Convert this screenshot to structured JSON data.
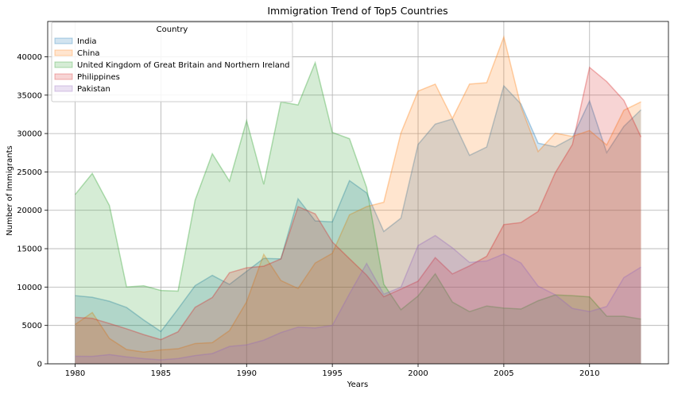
{
  "chart_data": {
    "type": "area",
    "title": "Immigration Trend of Top5 Countries",
    "xlabel": "Years",
    "ylabel": "Number of Immigrants",
    "xlim": [
      1978.4,
      2014.6
    ],
    "ylim": [
      0,
      44600
    ],
    "x_ticks": [
      1980,
      1985,
      1990,
      1995,
      2000,
      2005,
      2010
    ],
    "y_ticks": [
      0,
      5000,
      10000,
      15000,
      20000,
      25000,
      30000,
      35000,
      40000
    ],
    "grid": true,
    "stacked": false,
    "legend": {
      "title": "Country",
      "placement": "top-left"
    },
    "x": [
      1980,
      1981,
      1982,
      1983,
      1984,
      1985,
      1986,
      1987,
      1988,
      1989,
      1990,
      1991,
      1992,
      1993,
      1994,
      1995,
      1996,
      1997,
      1998,
      1999,
      2000,
      2001,
      2002,
      2003,
      2004,
      2005,
      2006,
      2007,
      2008,
      2009,
      2010,
      2011,
      2012,
      2013
    ],
    "series": [
      {
        "name": "India",
        "color": "#1f77b4",
        "values": [
          8880,
          8670,
          8147,
          7338,
          5704,
          4211,
          7150,
          10189,
          11522,
          10343,
          12041,
          13734,
          13673,
          21496,
          18620,
          18489,
          23859,
          22268,
          17241,
          18974,
          28572,
          31223,
          31889,
          27155,
          28235,
          36210,
          33848,
          28742,
          28261,
          29456,
          34235,
          27509,
          30933,
          33087
        ]
      },
      {
        "name": "China",
        "color": "#ff7f0e",
        "values": [
          5123,
          6682,
          3308,
          1863,
          1527,
          1816,
          1960,
          2643,
          2758,
          4323,
          8076,
          14255,
          10846,
          9817,
          13128,
          14398,
          19415,
          20475,
          21049,
          30069,
          35529,
          36434,
          31961,
          36439,
          36619,
          42584,
          33518,
          27642,
          30037,
          29622,
          30391,
          28502,
          33024,
          34129
        ]
      },
      {
        "name": "United Kingdom of Great Britain and Northern Ireland",
        "color": "#2ca02c",
        "values": [
          22045,
          24796,
          20620,
          10015,
          10170,
          9564,
          9470,
          21337,
          27359,
          23795,
          31668,
          23380,
          34123,
          33720,
          39231,
          30145,
          29322,
          22965,
          10367,
          7045,
          8840,
          11728,
          8046,
          6797,
          7533,
          7258,
          7140,
          8216,
          8979,
          8876,
          8724,
          6204,
          6195,
          5827
        ]
      },
      {
        "name": "Philippines",
        "color": "#d62728",
        "values": [
          6051,
          5921,
          5249,
          4562,
          3801,
          3150,
          4166,
          7360,
          8639,
          11865,
          12509,
          12718,
          13670,
          20479,
          19532,
          15864,
          13692,
          11549,
          8735,
          9734,
          10763,
          13836,
          11707,
          12758,
          14004,
          18139,
          18400,
          19837,
          24887,
          28573,
          38617,
          36765,
          34315,
          29544
        ]
      },
      {
        "name": "Pakistan",
        "color": "#9467bd",
        "values": [
          978,
          972,
          1201,
          900,
          668,
          514,
          691,
          1072,
          1334,
          2261,
          2470,
          3079,
          4071,
          4777,
          4666,
          4994,
          9125,
          13073,
          9068,
          9979,
          15400,
          16708,
          15110,
          13205,
          13399,
          14314,
          13127,
          10124,
          8994,
          7217,
          6811,
          7468,
          11227,
          12603
        ]
      }
    ]
  }
}
